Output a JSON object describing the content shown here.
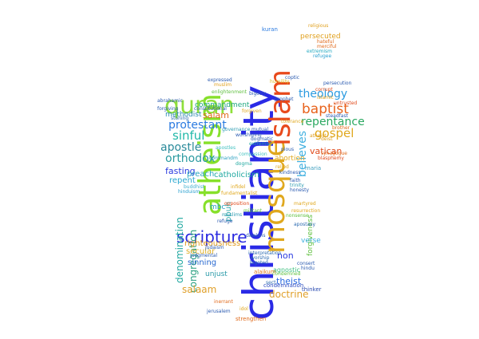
{
  "words": [
    {
      "text": "christianity",
      "color": "#2a2ae6"
    },
    {
      "text": "atheism",
      "color": "#86e02a"
    },
    {
      "text": "mosque",
      "color": "#e0a81e"
    },
    {
      "text": "islam",
      "color": "#e8491b"
    },
    {
      "text": "quran",
      "color": "#8fe03a"
    },
    {
      "text": "scripture",
      "color": "#2a2ae0"
    },
    {
      "text": "theology",
      "color": "#2a9ae0"
    },
    {
      "text": "baptist",
      "color": "#e8621b"
    },
    {
      "text": "repentance",
      "color": "#2aa860"
    },
    {
      "text": "gospel",
      "color": "#e0a81e"
    },
    {
      "text": "believes",
      "color": "#40b0e0"
    },
    {
      "text": "protestant",
      "color": "#2a7ae0"
    },
    {
      "text": "sinful",
      "color": "#20b8a8"
    },
    {
      "text": "apostle",
      "color": "#2a8a9a"
    },
    {
      "text": "orthodox",
      "color": "#2a9aa0"
    },
    {
      "text": "fasting",
      "color": "#2a3ae0"
    },
    {
      "text": "repent",
      "color": "#2aa8d0"
    },
    {
      "text": "methodist",
      "color": "#2a8ab0"
    },
    {
      "text": "salam",
      "color": "#e06a1b"
    },
    {
      "text": "commandment",
      "color": "#20a880"
    },
    {
      "text": "catholicism",
      "color": "#20a8a0"
    },
    {
      "text": "preach",
      "color": "#2aa8c0"
    },
    {
      "text": "denomination",
      "color": "#20a8a0"
    },
    {
      "text": "congregation",
      "color": "#2aa080"
    },
    {
      "text": "pbuh",
      "color": "#2aa8a8"
    },
    {
      "text": "righteousness",
      "color": "#e09a1b"
    },
    {
      "text": "secular",
      "color": "#e0b02a"
    },
    {
      "text": "sinning",
      "color": "#2a6ad0"
    },
    {
      "text": "unjust",
      "color": "#2a9aa8"
    },
    {
      "text": "salaam",
      "color": "#e0a02a"
    },
    {
      "text": "non",
      "color": "#2a3ae0"
    },
    {
      "text": "theist",
      "color": "#2a6ae0"
    },
    {
      "text": "doctrine",
      "color": "#e0a02a"
    },
    {
      "text": "forgiveness",
      "color": "#60c040"
    },
    {
      "text": "verse",
      "color": "#40b0e0"
    },
    {
      "text": "abortion",
      "color": "#e0a81e"
    },
    {
      "text": "vatican",
      "color": "#e04a1b"
    },
    {
      "text": "persecuted",
      "color": "#e0a01e"
    },
    {
      "text": "mbc",
      "color": "#2aa0c0"
    },
    {
      "text": "agnostic",
      "color": "#40c080"
    },
    {
      "text": "condemnation",
      "color": "#2a4ac0"
    },
    {
      "text": "alaikum",
      "color": "#e07a1b"
    },
    {
      "text": "strengthen",
      "color": "#e06a1b"
    },
    {
      "text": "maria",
      "color": "#40a0c0"
    },
    {
      "text": "thinker",
      "color": "#2a4ab0"
    },
    {
      "text": "kuran",
      "color": "#2a7ae0"
    },
    {
      "text": "judaism",
      "color": "#2a5ab0"
    },
    {
      "text": "religious",
      "color": "#e0a01e"
    },
    {
      "text": "hateful",
      "color": "#e06a1b"
    },
    {
      "text": "merciful",
      "color": "#e06a1b"
    },
    {
      "text": "extremism",
      "color": "#20a8c0"
    },
    {
      "text": "refugee",
      "color": "#2aa0d0"
    },
    {
      "text": "forgiving",
      "color": "#2a5ab0"
    },
    {
      "text": "stoning",
      "color": "#2a6ab0"
    },
    {
      "text": "humility",
      "color": "#e0c02a"
    },
    {
      "text": "enlightenment",
      "color": "#60c040"
    },
    {
      "text": "bigotry",
      "color": "#2a5ab0"
    },
    {
      "text": "mutual",
      "color": "#2a5ab0"
    },
    {
      "text": "worshiping",
      "color": "#2a5ab0"
    },
    {
      "text": "dogma",
      "color": "#20a8a0"
    },
    {
      "text": "compassion",
      "color": "#40c0c0"
    },
    {
      "text": "fundamentalist",
      "color": "#e0a81e"
    },
    {
      "text": "infidel",
      "color": "#e0a81e"
    },
    {
      "text": "hinduism",
      "color": "#2aa0d0"
    },
    {
      "text": "buddhist",
      "color": "#40b0d0"
    },
    {
      "text": "atheist",
      "color": "#e0a01e"
    },
    {
      "text": "deist",
      "color": "#e0a01e"
    },
    {
      "text": "synagogue",
      "color": "#e06a1b"
    },
    {
      "text": "blasphemy",
      "color": "#e04a1b"
    },
    {
      "text": "apostasy",
      "color": "#2a6ab0"
    },
    {
      "text": "sect",
      "color": "#2a6ab0"
    },
    {
      "text": "consert",
      "color": "#2a5ab0"
    },
    {
      "text": "hindu",
      "color": "#2a5ab0"
    },
    {
      "text": "martyred",
      "color": "#e0a81e"
    },
    {
      "text": "interpretation",
      "color": "#2a6ab0"
    },
    {
      "text": "worship",
      "color": "#2a6ab0"
    },
    {
      "text": "bigoted",
      "color": "#2a6ab0"
    },
    {
      "text": "militant",
      "color": "#60c040"
    },
    {
      "text": "opposition",
      "color": "#e04a1b"
    },
    {
      "text": "dawkins",
      "color": "#2a5ab0"
    },
    {
      "text": "persecution",
      "color": "#2a5ab0"
    },
    {
      "text": "islamic",
      "color": "#e0a01e"
    },
    {
      "text": "extremist",
      "color": "#20a8a0"
    },
    {
      "text": "judgmental",
      "color": "#2a5ab0"
    },
    {
      "text": "forgiven",
      "color": "#e0a81e"
    },
    {
      "text": "commandm",
      "color": "#2aa0c0"
    },
    {
      "text": "governance",
      "color": "#2a9ab0"
    },
    {
      "text": "constitutional",
      "color": "#2a5ab0"
    },
    {
      "text": "abrahamic",
      "color": "#2a5ab0"
    },
    {
      "text": "dogmatic",
      "color": "#2a5ab0"
    },
    {
      "text": "untrusted",
      "color": "#e04a1b"
    },
    {
      "text": "apostles",
      "color": "#40c0c0"
    },
    {
      "text": "steadfast",
      "color": "#2a5ab0"
    },
    {
      "text": "expressed",
      "color": "#2a5ab0"
    },
    {
      "text": "muslim",
      "color": "#e0a01e"
    },
    {
      "text": "prophet",
      "color": "#2a5ab0"
    },
    {
      "text": "coptic",
      "color": "#2a5ab0"
    },
    {
      "text": "tolerance",
      "color": "#e0a81e"
    },
    {
      "text": "brother",
      "color": "#e06a1b"
    },
    {
      "text": "muslims",
      "color": "#2a9ab0"
    },
    {
      "text": "refuge",
      "color": "#2a5ab0"
    },
    {
      "text": "nonsense",
      "color": "#60c040"
    },
    {
      "text": "resurrection",
      "color": "#e0a81e"
    },
    {
      "text": "faith",
      "color": "#2a5ab0"
    },
    {
      "text": "trinity",
      "color": "#2a9ab0"
    },
    {
      "text": "honesty",
      "color": "#2a5ab0"
    },
    {
      "text": "relied",
      "color": "#e0a81e"
    },
    {
      "text": "kindness",
      "color": "#2a5ab0"
    },
    {
      "text": "corrupt",
      "color": "#e04a1b"
    },
    {
      "text": "pious",
      "color": "#2a5ab0"
    },
    {
      "text": "condemned",
      "color": "#60c040"
    },
    {
      "text": "jerusalem",
      "color": "#2a5ab0"
    },
    {
      "text": "inerrant",
      "color": "#e06a1b"
    },
    {
      "text": "idol",
      "color": "#e0a81e"
    }
  ]
}
